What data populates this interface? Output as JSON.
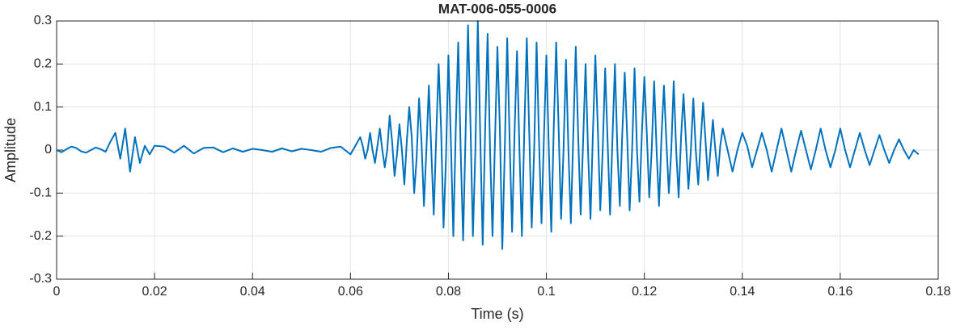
{
  "chart_data": {
    "type": "line",
    "title": "MAT-006-055-0006",
    "xlabel": "Time (s)",
    "ylabel": "Amplitude",
    "color": "#0072bd",
    "grid": true,
    "xlim": [
      0,
      0.18
    ],
    "xticks": [
      0,
      0.02,
      0.04,
      0.06,
      0.08,
      0.1,
      0.12,
      0.14,
      0.16,
      0.18
    ],
    "ylim": [
      -0.3,
      0.3
    ],
    "yticks": [
      -0.3,
      -0.2,
      -0.1,
      0,
      0.1,
      0.2,
      0.3
    ],
    "x": [
      0,
      0.001,
      0.002,
      0.003,
      0.004,
      0.005,
      0.006,
      0.007,
      0.008,
      0.009,
      0.01,
      0.011,
      0.012,
      0.013,
      0.014,
      0.015,
      0.016,
      0.017,
      0.018,
      0.019,
      0.02,
      0.022,
      0.024,
      0.026,
      0.028,
      0.03,
      0.032,
      0.034,
      0.036,
      0.038,
      0.04,
      0.042,
      0.044,
      0.046,
      0.048,
      0.05,
      0.052,
      0.054,
      0.056,
      0.058,
      0.06,
      0.062,
      0.0625,
      0.063,
      0.0635,
      0.064,
      0.0645,
      0.065,
      0.0655,
      0.066,
      0.0665,
      0.067,
      0.0675,
      0.068,
      0.0685,
      0.069,
      0.0695,
      0.07,
      0.0705,
      0.071,
      0.0715,
      0.072,
      0.0725,
      0.073,
      0.0735,
      0.074,
      0.0745,
      0.075,
      0.0755,
      0.076,
      0.0765,
      0.077,
      0.0775,
      0.078,
      0.0785,
      0.079,
      0.0795,
      0.08,
      0.0805,
      0.081,
      0.0815,
      0.082,
      0.0825,
      0.083,
      0.0835,
      0.084,
      0.0845,
      0.085,
      0.0855,
      0.086,
      0.0865,
      0.087,
      0.0875,
      0.088,
      0.0885,
      0.089,
      0.0895,
      0.09,
      0.0905,
      0.091,
      0.0915,
      0.092,
      0.0925,
      0.093,
      0.0935,
      0.094,
      0.0945,
      0.095,
      0.0955,
      0.096,
      0.0965,
      0.097,
      0.0975,
      0.098,
      0.0985,
      0.099,
      0.0995,
      0.1,
      0.1005,
      0.101,
      0.1015,
      0.102,
      0.1025,
      0.103,
      0.1035,
      0.104,
      0.1045,
      0.105,
      0.1055,
      0.106,
      0.1065,
      0.107,
      0.1075,
      0.108,
      0.1085,
      0.109,
      0.1095,
      0.11,
      0.1105,
      0.111,
      0.1115,
      0.112,
      0.1125,
      0.113,
      0.1135,
      0.114,
      0.1145,
      0.115,
      0.1155,
      0.116,
      0.1165,
      0.117,
      0.1175,
      0.118,
      0.1185,
      0.119,
      0.1195,
      0.12,
      0.1205,
      0.121,
      0.1215,
      0.122,
      0.1225,
      0.123,
      0.1235,
      0.124,
      0.1245,
      0.125,
      0.1255,
      0.126,
      0.1265,
      0.127,
      0.1275,
      0.128,
      0.1285,
      0.129,
      0.1295,
      0.13,
      0.1305,
      0.131,
      0.1315,
      0.132,
      0.1325,
      0.133,
      0.1335,
      0.134,
      0.1345,
      0.135,
      0.1355,
      0.136,
      0.137,
      0.138,
      0.139,
      0.14,
      0.141,
      0.142,
      0.143,
      0.144,
      0.145,
      0.146,
      0.147,
      0.148,
      0.149,
      0.15,
      0.151,
      0.152,
      0.153,
      0.154,
      0.155,
      0.156,
      0.157,
      0.158,
      0.159,
      0.16,
      0.161,
      0.162,
      0.163,
      0.164,
      0.165,
      0.166,
      0.167,
      0.168,
      0.169,
      0.17,
      0.171,
      0.172,
      0.173,
      0.174,
      0.175,
      0.176
    ],
    "values": [
      0,
      -0.005,
      0.002,
      0.008,
      0.005,
      -0.003,
      -0.006,
      0,
      0.006,
      0.002,
      -0.004,
      0.02,
      0.04,
      -0.02,
      0.05,
      -0.05,
      0.03,
      -0.03,
      0.01,
      -0.01,
      0.01,
      0.008,
      -0.006,
      0.01,
      -0.008,
      0.005,
      0.006,
      -0.005,
      0.004,
      -0.004,
      0.003,
      0,
      -0.004,
      0.004,
      -0.003,
      0.003,
      0,
      -0.004,
      0.005,
      0.008,
      -0.01,
      0.03,
      0.01,
      -0.02,
      0,
      0.04,
      0,
      -0.03,
      0.01,
      0.05,
      0,
      -0.04,
      0,
      0.08,
      0.02,
      -0.06,
      -0.01,
      0.06,
      0,
      -0.08,
      0.02,
      0.1,
      0.03,
      -0.1,
      -0.02,
      0.12,
      0.02,
      -0.13,
      0,
      0.15,
      0,
      -0.15,
      0.03,
      0.2,
      0.05,
      -0.18,
      -0.02,
      0.22,
      0.02,
      -0.2,
      0.05,
      0.25,
      0,
      -0.21,
      0.04,
      0.29,
      0.06,
      -0.2,
      0,
      0.3,
      0.03,
      -0.22,
      0.05,
      0.27,
      0,
      -0.2,
      0.02,
      0.24,
      0.05,
      -0.23,
      0,
      0.26,
      0.02,
      -0.19,
      0.04,
      0.23,
      0,
      -0.2,
      0.05,
      0.26,
      0.04,
      -0.18,
      0,
      0.25,
      0.02,
      -0.17,
      0.03,
      0.22,
      0,
      -0.19,
      0.05,
      0.25,
      0.05,
      -0.16,
      0,
      0.21,
      0,
      -0.17,
      0.04,
      0.24,
      0.03,
      -0.15,
      0.02,
      0.2,
      0,
      -0.16,
      0.04,
      0.22,
      0.05,
      -0.14,
      0,
      0.19,
      0.02,
      -0.15,
      0.03,
      0.2,
      0,
      -0.13,
      0.04,
      0.18,
      0.03,
      -0.14,
      0,
      0.19,
      0,
      -0.12,
      0.04,
      0.17,
      0.04,
      -0.11,
      0,
      0.16,
      0,
      -0.13,
      0.03,
      0.15,
      0.02,
      -0.1,
      0,
      0.16,
      0,
      -0.11,
      0.03,
      0.13,
      0.02,
      -0.09,
      0,
      0.12,
      0,
      -0.08,
      0.02,
      0.11,
      0.02,
      -0.07,
      0,
      0.07,
      0,
      -0.06,
      0.01,
      0.05,
      0,
      -0.05,
      0,
      0.04,
      0.01,
      -0.04,
      0,
      0.04,
      0,
      -0.05,
      0,
      0.05,
      0,
      -0.05,
      0,
      0.045,
      0,
      -0.045,
      0,
      0.05,
      0,
      -0.04,
      0,
      0.05,
      0,
      -0.04,
      0,
      0.04,
      0,
      -0.035,
      0,
      0.035,
      0,
      -0.03,
      0,
      0.025,
      0,
      -0.02,
      0,
      -0.01
    ]
  }
}
